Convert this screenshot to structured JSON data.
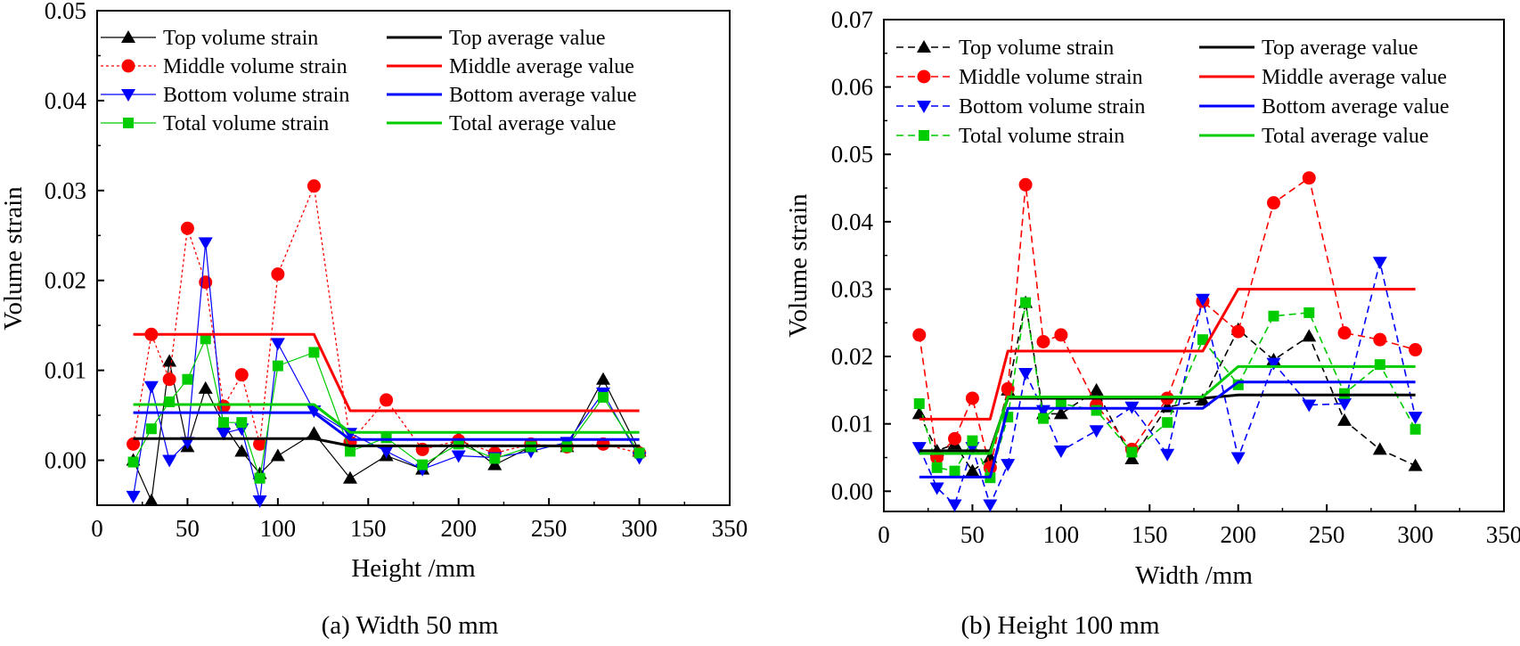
{
  "chart_data": [
    {
      "type": "line",
      "caption": "(a) Width 50 mm",
      "xlabel": "Height /mm",
      "ylabel": "Volume strain",
      "xlim": [
        0,
        350
      ],
      "ylim": [
        -0.005,
        0.05
      ],
      "xticks": [
        0,
        50,
        100,
        150,
        200,
        250,
        300,
        350
      ],
      "xtick_labels": [
        "0",
        "50",
        "100",
        "150",
        "200",
        "250",
        "300",
        "350"
      ],
      "yticks": [
        0.0,
        0.01,
        0.02,
        0.03,
        0.04,
        0.05
      ],
      "ytick_labels": [
        "0.00",
        "0.01",
        "0.02",
        "0.03",
        "0.04",
        "0.05"
      ],
      "legend_position": "top",
      "strain_dash": "thin solid",
      "series": [
        {
          "name": "Top volume strain",
          "color": "#000000",
          "marker": "triangle-up",
          "dash": "solid",
          "x": [
            20,
            30,
            40,
            50,
            60,
            70,
            80,
            90,
            100,
            120,
            140,
            160,
            180,
            200,
            220,
            240,
            260,
            280,
            300
          ],
          "y": [
            0.0,
            -0.0045,
            0.011,
            0.0015,
            0.008,
            0.004,
            0.001,
            -0.0015,
            0.0005,
            0.003,
            -0.002,
            0.0005,
            -0.001,
            0.0025,
            -0.0005,
            0.0015,
            0.0015,
            0.009,
            0.001
          ]
        },
        {
          "name": "Middle volume strain",
          "color": "#ff0000",
          "marker": "circle",
          "dash": "dotted",
          "x": [
            20,
            30,
            40,
            50,
            60,
            70,
            80,
            90,
            100,
            120,
            140,
            160,
            180,
            200,
            220,
            240,
            260,
            280,
            300
          ],
          "y": [
            0.0018,
            0.014,
            0.009,
            0.0258,
            0.0198,
            0.006,
            0.0095,
            0.0018,
            0.0207,
            0.0305,
            0.002,
            0.0067,
            0.0012,
            0.0022,
            0.0008,
            0.0018,
            0.0015,
            0.0018,
            0.0008
          ]
        },
        {
          "name": "Bottom volume strain",
          "color": "#0000ff",
          "marker": "triangle-down",
          "dash": "solid",
          "x": [
            20,
            30,
            40,
            50,
            60,
            70,
            80,
            90,
            100,
            120,
            140,
            160,
            180,
            200,
            220,
            240,
            260,
            280,
            300
          ],
          "y": [
            -0.004,
            0.0082,
            0.0,
            0.002,
            0.0242,
            0.003,
            0.0035,
            -0.0045,
            0.013,
            0.0055,
            0.003,
            0.001,
            -0.001,
            0.0005,
            0.0003,
            0.001,
            0.002,
            0.0075,
            0.0003
          ]
        },
        {
          "name": "Total volume strain",
          "color": "#00cc00",
          "marker": "square",
          "dash": "solid",
          "x": [
            20,
            30,
            40,
            50,
            60,
            70,
            80,
            90,
            100,
            120,
            140,
            160,
            180,
            200,
            220,
            240,
            260,
            280,
            300
          ],
          "y": [
            -0.0002,
            0.0035,
            0.0065,
            0.009,
            0.0135,
            0.0042,
            0.0042,
            -0.002,
            0.0105,
            0.012,
            0.001,
            0.0025,
            -0.0005,
            0.0018,
            0.0002,
            0.0015,
            0.0015,
            0.007,
            0.0008
          ]
        },
        {
          "name": "Top average value",
          "color": "#000000",
          "marker": "none",
          "dash": "thick",
          "x": [
            20,
            120,
            140,
            300
          ],
          "y": [
            0.0024,
            0.0024,
            0.0016,
            0.0016
          ]
        },
        {
          "name": "Middle average value",
          "color": "#ff0000",
          "marker": "none",
          "dash": "thick",
          "x": [
            20,
            120,
            140,
            300
          ],
          "y": [
            0.014,
            0.014,
            0.0055,
            0.0055
          ]
        },
        {
          "name": "Bottom average value",
          "color": "#0000ff",
          "marker": "none",
          "dash": "thick",
          "x": [
            20,
            120,
            140,
            300
          ],
          "y": [
            0.0053,
            0.0053,
            0.0023,
            0.0023
          ]
        },
        {
          "name": "Total average value",
          "color": "#00cc00",
          "marker": "none",
          "dash": "thick",
          "x": [
            20,
            120,
            140,
            300
          ],
          "y": [
            0.0062,
            0.0062,
            0.0031,
            0.0031
          ]
        }
      ]
    },
    {
      "type": "line",
      "caption": "(b) Height 100 mm",
      "xlabel": "Width /mm",
      "ylabel": "Volume strain",
      "xlim": [
        0,
        350
      ],
      "ylim": [
        -0.003,
        0.07
      ],
      "xticks": [
        0,
        50,
        100,
        150,
        200,
        250,
        300,
        350
      ],
      "xtick_labels": [
        "0",
        "50",
        "100",
        "150",
        "200",
        "250",
        "300",
        "350"
      ],
      "yticks": [
        0.0,
        0.01,
        0.02,
        0.03,
        0.04,
        0.05,
        0.06,
        0.07
      ],
      "ytick_labels": [
        "0.00",
        "0.01",
        "0.02",
        "0.03",
        "0.04",
        "0.05",
        "0.06",
        "0.07"
      ],
      "legend_position": "top",
      "strain_dash": "dashed",
      "series": [
        {
          "name": "Top volume strain",
          "color": "#000000",
          "marker": "triangle-up",
          "dash": "dashed",
          "x": [
            20,
            30,
            40,
            50,
            60,
            70,
            80,
            90,
            100,
            120,
            140,
            160,
            180,
            200,
            220,
            240,
            260,
            280,
            300
          ],
          "y": [
            0.0115,
            0.006,
            0.007,
            0.003,
            0.005,
            0.015,
            0.028,
            0.0115,
            0.0115,
            0.015,
            0.0048,
            0.0125,
            0.0135,
            0.024,
            0.0195,
            0.023,
            0.0105,
            0.0062,
            0.0038
          ]
        },
        {
          "name": "Middle volume strain",
          "color": "#ff0000",
          "marker": "circle",
          "dash": "dashed",
          "x": [
            20,
            30,
            40,
            50,
            60,
            70,
            80,
            90,
            100,
            120,
            140,
            160,
            180,
            200,
            220,
            240,
            260,
            280,
            300
          ],
          "y": [
            0.0232,
            0.005,
            0.0078,
            0.0138,
            0.0035,
            0.0152,
            0.0455,
            0.0222,
            0.0232,
            0.0128,
            0.0062,
            0.0138,
            0.0282,
            0.0237,
            0.0428,
            0.0465,
            0.0235,
            0.0225,
            0.021
          ]
        },
        {
          "name": "Bottom volume strain",
          "color": "#0000ff",
          "marker": "triangle-down",
          "dash": "dashed",
          "x": [
            20,
            30,
            40,
            50,
            60,
            70,
            80,
            90,
            100,
            120,
            140,
            160,
            180,
            200,
            220,
            240,
            260,
            280,
            300
          ],
          "y": [
            0.0065,
            0.0005,
            -0.002,
            0.0065,
            -0.002,
            0.004,
            0.0175,
            0.012,
            0.006,
            0.009,
            0.0125,
            0.0055,
            0.0285,
            0.005,
            0.019,
            0.0128,
            0.013,
            0.034,
            0.011
          ]
        },
        {
          "name": "Total volume strain",
          "color": "#00cc00",
          "marker": "square",
          "dash": "dashed",
          "x": [
            20,
            30,
            40,
            50,
            60,
            70,
            80,
            90,
            100,
            120,
            140,
            160,
            180,
            200,
            220,
            240,
            260,
            280,
            300
          ],
          "y": [
            0.013,
            0.0035,
            0.003,
            0.0075,
            0.002,
            0.011,
            0.028,
            0.0108,
            0.013,
            0.012,
            0.0058,
            0.0102,
            0.0225,
            0.0158,
            0.026,
            0.0265,
            0.0145,
            0.0188,
            0.0092
          ]
        },
        {
          "name": "Top average value",
          "color": "#000000",
          "marker": "none",
          "dash": "thick",
          "x": [
            20,
            60,
            70,
            180,
            200,
            300
          ],
          "y": [
            0.006,
            0.006,
            0.0138,
            0.0138,
            0.0143,
            0.0143
          ]
        },
        {
          "name": "Middle average value",
          "color": "#ff0000",
          "marker": "none",
          "dash": "thick",
          "x": [
            20,
            60,
            70,
            180,
            200,
            300
          ],
          "y": [
            0.0107,
            0.0107,
            0.0208,
            0.0208,
            0.03,
            0.03
          ]
        },
        {
          "name": "Bottom average value",
          "color": "#0000ff",
          "marker": "none",
          "dash": "thick",
          "x": [
            20,
            60,
            70,
            180,
            200,
            300
          ],
          "y": [
            0.0021,
            0.0021,
            0.0123,
            0.0123,
            0.0162,
            0.0162
          ]
        },
        {
          "name": "Total average value",
          "color": "#00cc00",
          "marker": "none",
          "dash": "thick",
          "x": [
            20,
            60,
            70,
            180,
            200,
            300
          ],
          "y": [
            0.0056,
            0.0056,
            0.014,
            0.014,
            0.0185,
            0.0185
          ]
        }
      ]
    }
  ]
}
